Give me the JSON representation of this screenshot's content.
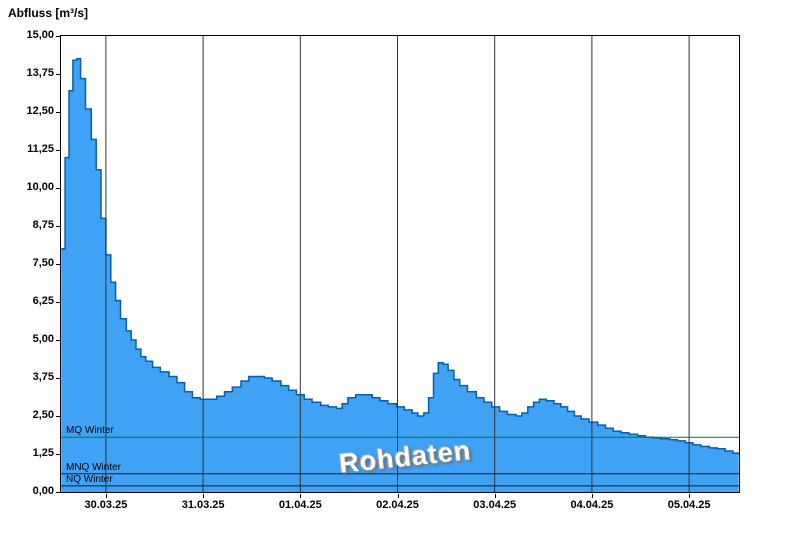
{
  "chart_data": {
    "type": "area",
    "title": "Abfluss [m³/s]",
    "xlabel": "",
    "ylabel": "Abfluss [m³/s]",
    "watermark": "Rohdaten",
    "ylim": [
      0,
      15
    ],
    "xlim_days": [
      -0.462,
      6.513
    ],
    "grid": "vertical-date-lines",
    "legend": "none",
    "y_ticks": [
      {
        "value": 0,
        "label": "0,00"
      },
      {
        "value": 1.25,
        "label": "1,25"
      },
      {
        "value": 2.5,
        "label": "2,50"
      },
      {
        "value": 3.75,
        "label": "3,75"
      },
      {
        "value": 5,
        "label": "5,00"
      },
      {
        "value": 6.25,
        "label": "6,25"
      },
      {
        "value": 7.5,
        "label": "7,50"
      },
      {
        "value": 8.75,
        "label": "8,75"
      },
      {
        "value": 10,
        "label": "10,00"
      },
      {
        "value": 11.25,
        "label": "11,25"
      },
      {
        "value": 12.5,
        "label": "12,50"
      },
      {
        "value": 13.75,
        "label": "13,75"
      },
      {
        "value": 15,
        "label": "15,00"
      }
    ],
    "x_ticks": [
      {
        "day": 0,
        "label": "30.03.25"
      },
      {
        "day": 1,
        "label": "31.03.25"
      },
      {
        "day": 2,
        "label": "01.04.25"
      },
      {
        "day": 3,
        "label": "02.04.25"
      },
      {
        "day": 4,
        "label": "03.04.25"
      },
      {
        "day": 5,
        "label": "04.04.25"
      },
      {
        "day": 6,
        "label": "05.04.25"
      }
    ],
    "reference_lines": [
      {
        "label": "MQ Winter",
        "value": 1.8,
        "color": "#007A29"
      },
      {
        "label": "MNQ Winter",
        "value": 0.6,
        "color": "#1A1A1A"
      },
      {
        "label": "NQ Winter",
        "value": 0.2,
        "color": "#1A1A1A"
      }
    ],
    "colors": {
      "fill": "#3FA2F5",
      "stroke": "#0A5CAD",
      "grid": "#333333",
      "background": "#FFFFFF"
    },
    "series": [
      {
        "name": "Abfluss Rohdaten",
        "unit": "m³/s",
        "points": [
          [
            -0.46,
            8.0
          ],
          [
            -0.42,
            11.0
          ],
          [
            -0.38,
            13.2
          ],
          [
            -0.34,
            14.2
          ],
          [
            -0.3,
            14.25
          ],
          [
            -0.26,
            13.6
          ],
          [
            -0.21,
            12.6
          ],
          [
            -0.15,
            11.6
          ],
          [
            -0.1,
            10.6
          ],
          [
            -0.05,
            9.0
          ],
          [
            0.0,
            7.8
          ],
          [
            0.05,
            6.9
          ],
          [
            0.1,
            6.3
          ],
          [
            0.15,
            5.7
          ],
          [
            0.21,
            5.3
          ],
          [
            0.26,
            5.0
          ],
          [
            0.31,
            4.7
          ],
          [
            0.36,
            4.45
          ],
          [
            0.41,
            4.3
          ],
          [
            0.48,
            4.1
          ],
          [
            0.56,
            3.95
          ],
          [
            0.65,
            3.8
          ],
          [
            0.73,
            3.6
          ],
          [
            0.81,
            3.3
          ],
          [
            0.89,
            3.1
          ],
          [
            0.97,
            3.05
          ],
          [
            1.06,
            3.05
          ],
          [
            1.14,
            3.15
          ],
          [
            1.22,
            3.3
          ],
          [
            1.3,
            3.45
          ],
          [
            1.39,
            3.65
          ],
          [
            1.47,
            3.8
          ],
          [
            1.55,
            3.8
          ],
          [
            1.63,
            3.75
          ],
          [
            1.71,
            3.65
          ],
          [
            1.8,
            3.5
          ],
          [
            1.88,
            3.35
          ],
          [
            1.96,
            3.2
          ],
          [
            2.04,
            3.05
          ],
          [
            2.12,
            2.95
          ],
          [
            2.21,
            2.85
          ],
          [
            2.29,
            2.8
          ],
          [
            2.37,
            2.75
          ],
          [
            2.43,
            2.9
          ],
          [
            2.49,
            3.1
          ],
          [
            2.57,
            3.2
          ],
          [
            2.66,
            3.2
          ],
          [
            2.74,
            3.1
          ],
          [
            2.82,
            3.0
          ],
          [
            2.9,
            2.9
          ],
          [
            2.99,
            2.8
          ],
          [
            3.07,
            2.7
          ],
          [
            3.15,
            2.6
          ],
          [
            3.21,
            2.5
          ],
          [
            3.27,
            2.6
          ],
          [
            3.32,
            3.1
          ],
          [
            3.37,
            3.9
          ],
          [
            3.42,
            4.25
          ],
          [
            3.47,
            4.2
          ],
          [
            3.52,
            4.0
          ],
          [
            3.58,
            3.7
          ],
          [
            3.64,
            3.5
          ],
          [
            3.72,
            3.3
          ],
          [
            3.81,
            3.1
          ],
          [
            3.89,
            2.95
          ],
          [
            3.97,
            2.8
          ],
          [
            4.05,
            2.65
          ],
          [
            4.13,
            2.55
          ],
          [
            4.22,
            2.5
          ],
          [
            4.28,
            2.6
          ],
          [
            4.34,
            2.8
          ],
          [
            4.4,
            2.95
          ],
          [
            4.46,
            3.05
          ],
          [
            4.53,
            3.0
          ],
          [
            4.61,
            2.9
          ],
          [
            4.68,
            2.8
          ],
          [
            4.75,
            2.65
          ],
          [
            4.82,
            2.5
          ],
          [
            4.89,
            2.4
          ],
          [
            4.97,
            2.3
          ],
          [
            5.06,
            2.2
          ],
          [
            5.14,
            2.1
          ],
          [
            5.22,
            2.0
          ],
          [
            5.3,
            1.95
          ],
          [
            5.38,
            1.9
          ],
          [
            5.47,
            1.85
          ],
          [
            5.55,
            1.8
          ],
          [
            5.63,
            1.78
          ],
          [
            5.71,
            1.75
          ],
          [
            5.8,
            1.72
          ],
          [
            5.88,
            1.68
          ],
          [
            5.96,
            1.62
          ],
          [
            6.04,
            1.55
          ],
          [
            6.12,
            1.5
          ],
          [
            6.21,
            1.45
          ],
          [
            6.29,
            1.42
          ],
          [
            6.37,
            1.35
          ],
          [
            6.45,
            1.28
          ],
          [
            6.51,
            1.22
          ]
        ]
      }
    ]
  }
}
